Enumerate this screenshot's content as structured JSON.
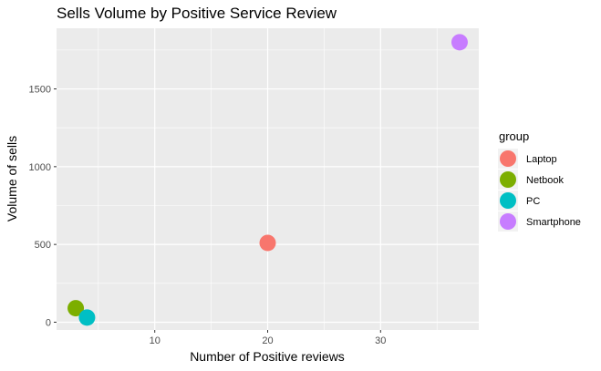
{
  "chart_data": {
    "type": "scatter",
    "title": "Sells Volume by Positive Service Review",
    "xlabel": "Number of Positive reviews",
    "ylabel": "Volume of sells",
    "xlim": [
      1.3,
      38.7
    ],
    "ylim": [
      -50,
      1890
    ],
    "x_ticks": [
      10,
      20,
      30
    ],
    "x_tick_labels": [
      "10",
      "20",
      "30"
    ],
    "y_ticks": [
      0,
      500,
      1000,
      1500
    ],
    "y_tick_labels": [
      "0",
      "500",
      "1000",
      "1500"
    ],
    "grid": true,
    "legend": {
      "title": "group",
      "position": "right"
    },
    "series": [
      {
        "name": "Laptop",
        "color": "#F8766D",
        "x": [
          20
        ],
        "y": [
          510
        ]
      },
      {
        "name": "Netbook",
        "color": "#7CAE00",
        "x": [
          3
        ],
        "y": [
          90
        ]
      },
      {
        "name": "PC",
        "color": "#00BFC4",
        "x": [
          4
        ],
        "y": [
          30
        ]
      },
      {
        "name": "Smartphone",
        "color": "#C77CFF",
        "x": [
          37
        ],
        "y": [
          1800
        ]
      }
    ]
  }
}
